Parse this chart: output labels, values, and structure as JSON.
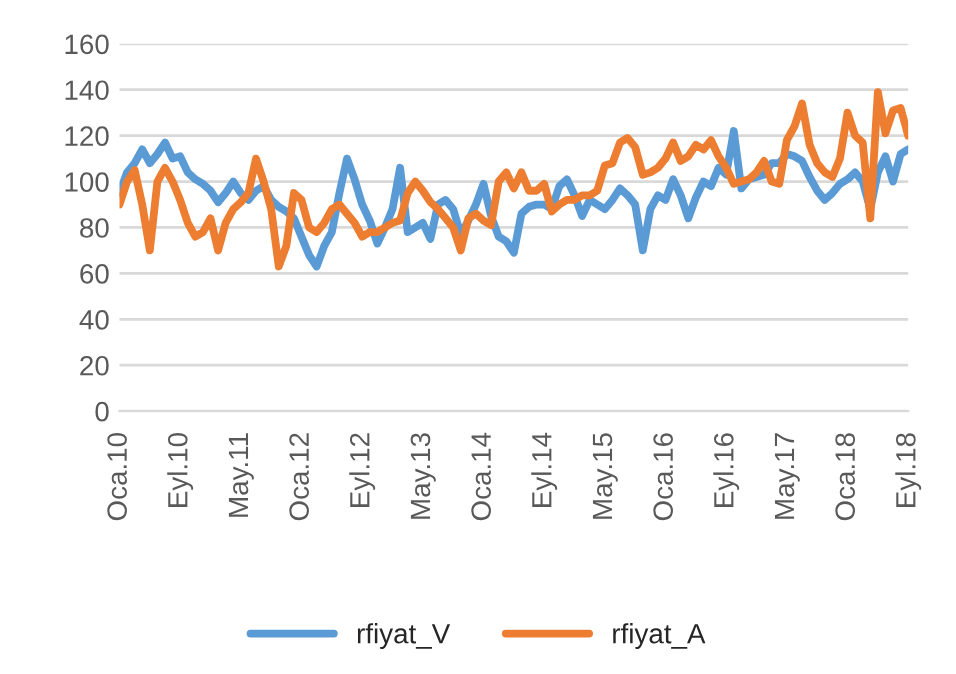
{
  "chart_data": {
    "type": "line",
    "categories": [
      "Oca.10",
      null,
      null,
      null,
      null,
      null,
      null,
      null,
      "Eyl.10",
      null,
      null,
      null,
      null,
      null,
      null,
      null,
      "May.11",
      null,
      null,
      null,
      null,
      null,
      null,
      null,
      "Oca.12",
      null,
      null,
      null,
      null,
      null,
      null,
      null,
      "Eyl.12",
      null,
      null,
      null,
      null,
      null,
      null,
      null,
      "May.13",
      null,
      null,
      null,
      null,
      null,
      null,
      null,
      "Oca.14",
      null,
      null,
      null,
      null,
      null,
      null,
      null,
      "Eyl.14",
      null,
      null,
      null,
      null,
      null,
      null,
      null,
      "May.15",
      null,
      null,
      null,
      null,
      null,
      null,
      null,
      "Oca.16",
      null,
      null,
      null,
      null,
      null,
      null,
      null,
      "Eyl.16",
      null,
      null,
      null,
      null,
      null,
      null,
      null,
      "May.17",
      null,
      null,
      null,
      null,
      null,
      null,
      null,
      "Oca.18",
      null,
      null,
      null,
      null,
      null,
      null,
      null,
      "Eyl.18"
    ],
    "series": [
      {
        "name": "rfiyat_V",
        "color": "#5b9bd5",
        "values": [
          95,
          104,
          108,
          114,
          108,
          112,
          117,
          110,
          111,
          104,
          101,
          99,
          96,
          91,
          95,
          100,
          95,
          92,
          96,
          98,
          92,
          89,
          87,
          84,
          76,
          68,
          63,
          72,
          78,
          95,
          110,
          101,
          90,
          83,
          73,
          80,
          88,
          106,
          78,
          80,
          82,
          75,
          90,
          92,
          88,
          77,
          83,
          90,
          99,
          85,
          76,
          74,
          69,
          86,
          89,
          90,
          90,
          88,
          98,
          101,
          94,
          85,
          92,
          90,
          88,
          92,
          97,
          94,
          90,
          70,
          88,
          94,
          92,
          101,
          94,
          84,
          93,
          100,
          98,
          106,
          103,
          122,
          97,
          101,
          102,
          103,
          108,
          108,
          112,
          111,
          109,
          102,
          96,
          92,
          95,
          99,
          101,
          104,
          100,
          88,
          104,
          111,
          100,
          112,
          114
        ]
      },
      {
        "name": "rfiyat_A",
        "color": "#ed7d31",
        "values": [
          90,
          100,
          105,
          90,
          70,
          100,
          106,
          100,
          92,
          82,
          76,
          78,
          84,
          70,
          82,
          88,
          91,
          95,
          110,
          100,
          88,
          63,
          72,
          95,
          92,
          80,
          78,
          82,
          88,
          90,
          86,
          82,
          76,
          78,
          78,
          80,
          82,
          83,
          95,
          100,
          96,
          91,
          88,
          84,
          80,
          70,
          84,
          86,
          83,
          81,
          100,
          104,
          97,
          104,
          96,
          96,
          99,
          87,
          90,
          92,
          92,
          94,
          94,
          96,
          107,
          108,
          117,
          119,
          115,
          103,
          104,
          106,
          110,
          117,
          109,
          111,
          116,
          114,
          118,
          111,
          106,
          99,
          100,
          101,
          104,
          109,
          100,
          99,
          118,
          124,
          134,
          116,
          108,
          104,
          102,
          110,
          130,
          120,
          117,
          84,
          139,
          121,
          131,
          132,
          120
        ]
      }
    ],
    "ylim": [
      0,
      160
    ],
    "yticks": [
      0,
      20,
      40,
      60,
      80,
      100,
      120,
      140,
      160
    ],
    "grid": "y",
    "legend": "bottom",
    "line_style": "solid",
    "marker": "none"
  }
}
